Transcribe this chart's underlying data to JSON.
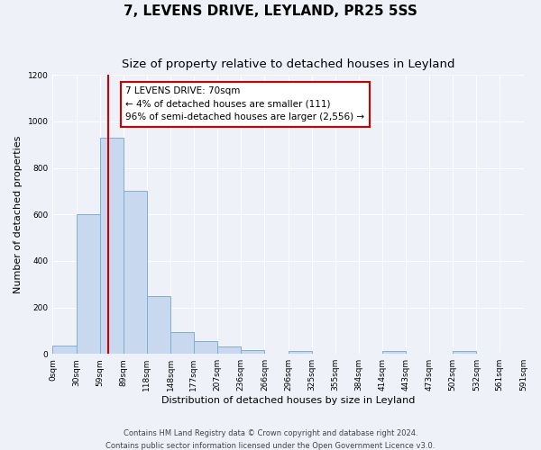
{
  "title": "7, LEVENS DRIVE, LEYLAND, PR25 5SS",
  "subtitle": "Size of property relative to detached houses in Leyland",
  "xlabel": "Distribution of detached houses by size in Leyland",
  "ylabel": "Number of detached properties",
  "bar_color": "#c8d8ef",
  "bar_edge_color": "#7fafd4",
  "background_color": "#eef2f8",
  "grid_color": "#ffffff",
  "bin_edges": [
    0,
    30,
    59,
    89,
    118,
    148,
    177,
    207,
    236,
    266,
    296,
    325,
    355,
    384,
    414,
    443,
    473,
    502,
    532,
    561,
    591
  ],
  "bin_labels": [
    "0sqm",
    "30sqm",
    "59sqm",
    "89sqm",
    "118sqm",
    "148sqm",
    "177sqm",
    "207sqm",
    "236sqm",
    "266sqm",
    "296sqm",
    "325sqm",
    "355sqm",
    "384sqm",
    "414sqm",
    "443sqm",
    "473sqm",
    "502sqm",
    "532sqm",
    "561sqm",
    "591sqm"
  ],
  "counts": [
    35,
    600,
    930,
    700,
    248,
    95,
    55,
    32,
    18,
    0,
    12,
    0,
    0,
    0,
    12,
    0,
    0,
    12,
    0,
    0
  ],
  "vline_x": 70,
  "vline_color": "#cc0000",
  "annotation_title": "7 LEVENS DRIVE: 70sqm",
  "annotation_line1": "← 4% of detached houses are smaller (111)",
  "annotation_line2": "96% of semi-detached houses are larger (2,556) →",
  "annotation_box_color": "#ffffff",
  "annotation_box_edge": "#cc0000",
  "ylim": [
    0,
    1200
  ],
  "yticks": [
    0,
    200,
    400,
    600,
    800,
    1000,
    1200
  ],
  "footer1": "Contains HM Land Registry data © Crown copyright and database right 2024.",
  "footer2": "Contains public sector information licensed under the Open Government Licence v3.0.",
  "title_fontsize": 11,
  "subtitle_fontsize": 9.5,
  "axis_label_fontsize": 8,
  "tick_fontsize": 6.5,
  "annotation_fontsize": 7.5,
  "footer_fontsize": 6
}
